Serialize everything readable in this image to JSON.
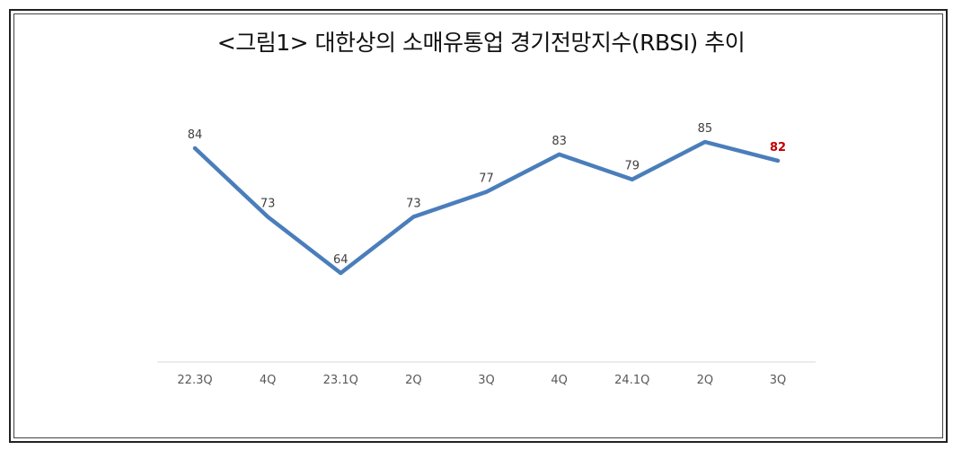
{
  "title": "<그림1> 대한상의 소매유통업 경기전망지수(RBSI) 추이",
  "chart_data": {
    "type": "line",
    "title": "<그림1> 대한상의 소매유통업 경기전망지수(RBSI) 추이",
    "categories": [
      "22.3Q",
      "4Q",
      "23.1Q",
      "2Q",
      "3Q",
      "4Q",
      "24.1Q",
      "2Q",
      "3Q"
    ],
    "series": [
      {
        "values": [
          84,
          73,
          64,
          73,
          77,
          83,
          79,
          85,
          82
        ],
        "color": "#4a7ebb"
      }
    ],
    "data_labels": [
      "84",
      "73",
      "64",
      "73",
      "77",
      "83",
      "79",
      "85",
      "82"
    ],
    "highlight_label_color": "#c00000",
    "ylim": [
      50,
      90
    ],
    "grid": false,
    "legend": "none"
  }
}
